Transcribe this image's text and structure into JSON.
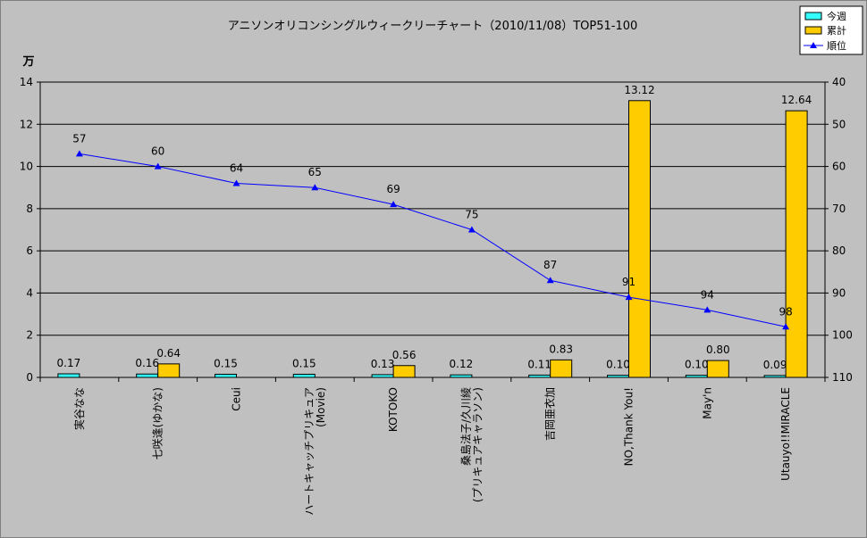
{
  "chart_data": {
    "type": "bar",
    "title": "アニソンオリコンシングルウィークリーチャート（2010/11/08）TOP51-100",
    "y_unit_label": "万",
    "categories": [
      [
        "実谷なな"
      ],
      [
        "七咲逢(ゆかな)"
      ],
      [
        "Ceui"
      ],
      [
        "ハートキャッチプリキュア",
        "(Movie)"
      ],
      [
        "KOTOKO"
      ],
      [
        "桑島法子/久川綾",
        "(プリキュアキャラソン)"
      ],
      [
        "吉岡亜衣加"
      ],
      [
        "NO,Thank You!"
      ],
      [
        "May'n"
      ],
      [
        "Utauyo!!MIRACLE"
      ]
    ],
    "ylim": [
      0,
      14
    ],
    "yticks": [
      0,
      2,
      4,
      6,
      8,
      10,
      12,
      14
    ],
    "y2lim": [
      40,
      110
    ],
    "y2ticks": [
      40,
      50,
      60,
      70,
      80,
      90,
      100,
      110
    ],
    "y2_inverted": true,
    "grid": true,
    "legend_position": "top-right",
    "series": [
      {
        "name": "今週",
        "kind": "bar",
        "color": "#33ffff",
        "values": [
          0.17,
          0.16,
          0.15,
          0.15,
          0.13,
          0.12,
          0.11,
          0.1,
          0.1,
          0.09
        ],
        "labels": [
          "0.17",
          "0.16",
          "0.15",
          "0.15",
          "0.13",
          "0.12",
          "0.11",
          "0.10",
          "0.10",
          "0.09"
        ]
      },
      {
        "name": "累計",
        "kind": "bar",
        "color": "#ffcc00",
        "values": [
          null,
          0.64,
          null,
          null,
          0.56,
          null,
          0.83,
          13.12,
          0.8,
          12.64
        ],
        "labels": [
          null,
          "0.64",
          null,
          null,
          "0.56",
          null,
          "0.83",
          "13.12",
          "0.80",
          "12.64"
        ]
      },
      {
        "name": "順位",
        "kind": "line",
        "axis": "right",
        "color": "#0000ff",
        "values": [
          57,
          60,
          64,
          65,
          69,
          75,
          87,
          91,
          94,
          98
        ],
        "labels": [
          "57",
          "60",
          "64",
          "65",
          "69",
          "75",
          "87",
          "91",
          "94",
          "98"
        ]
      }
    ]
  }
}
